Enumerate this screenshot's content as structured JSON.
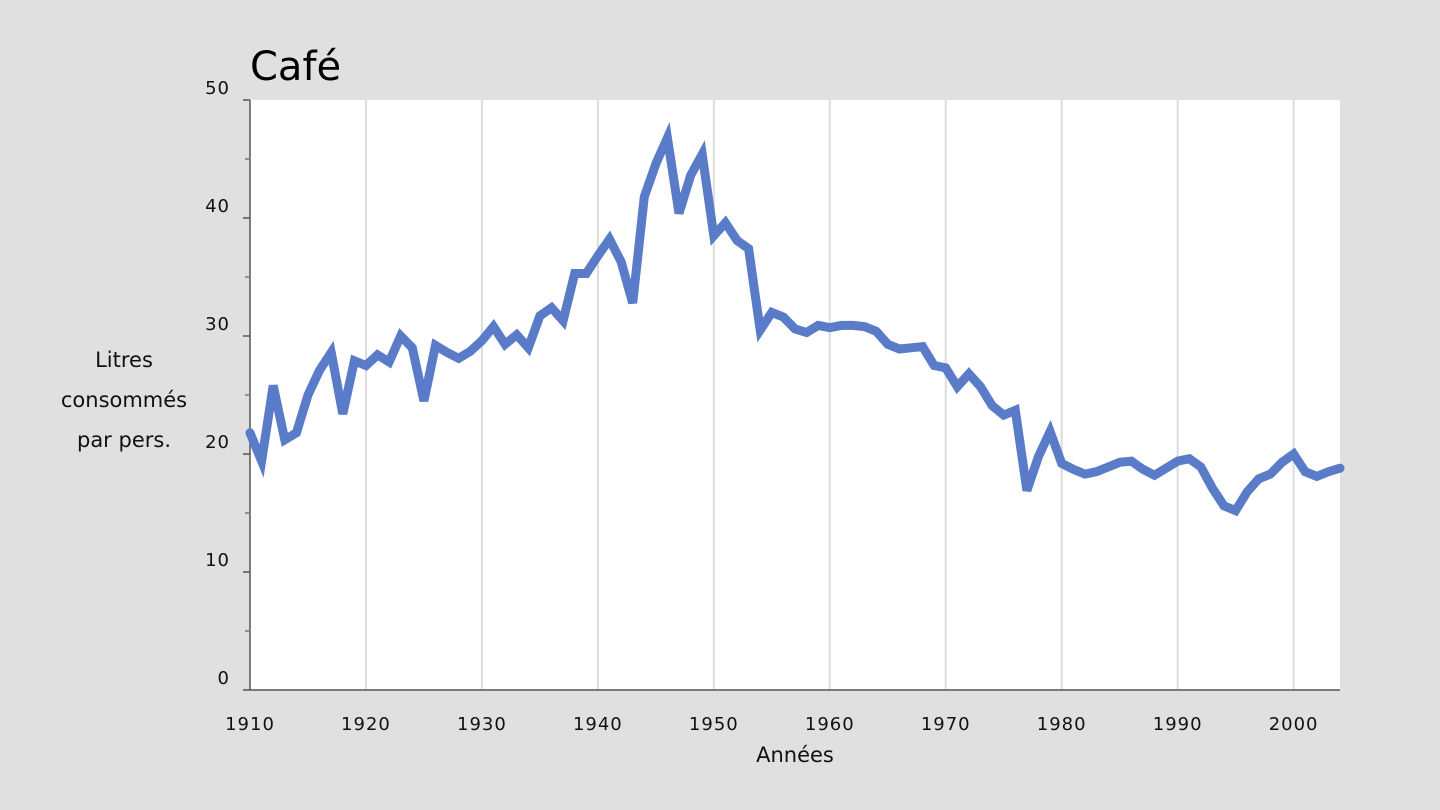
{
  "chart_data": {
    "type": "line",
    "title": "Café",
    "xlabel": "Années",
    "ylabel": [
      "Litres",
      "consommés",
      "par pers."
    ],
    "xlim": [
      1910,
      2004
    ],
    "ylim": [
      0,
      50
    ],
    "x_ticks": [
      1910,
      1920,
      1930,
      1940,
      1950,
      1960,
      1970,
      1980,
      1990,
      2000
    ],
    "y_ticks": [
      0,
      10,
      20,
      30,
      40,
      50
    ],
    "y_minor_ticks": [
      5,
      15,
      25,
      35,
      45
    ],
    "grid": {
      "x": true,
      "y": false
    },
    "line_color": "#5a7bc8",
    "series": [
      {
        "x": [
          1910,
          1911,
          1912,
          1913,
          1914,
          1915,
          1916,
          1917,
          1918,
          1919,
          1920,
          1921,
          1922,
          1923,
          1924,
          1925,
          1926,
          1927,
          1928,
          1929,
          1930,
          1931,
          1932,
          1933,
          1934,
          1935,
          1936,
          1937,
          1938,
          1939,
          1940,
          1941,
          1942,
          1943,
          1944,
          1945,
          1946,
          1947,
          1948,
          1949,
          1950,
          1951,
          1952,
          1953,
          1954,
          1955,
          1956,
          1957,
          1958,
          1959,
          1960,
          1961,
          1962,
          1963,
          1964,
          1965,
          1966,
          1967,
          1968,
          1969,
          1970,
          1971,
          1972,
          1973,
          1974,
          1975,
          1976,
          1977,
          1978,
          1979,
          1980,
          1981,
          1982,
          1983,
          1984,
          1985,
          1986,
          1987,
          1988,
          1989,
          1990,
          1991,
          1992,
          1993,
          1994,
          1995,
          1996,
          1997,
          1998,
          1999,
          2000,
          2001,
          2002,
          2003,
          2004
        ],
        "y": [
          21.8,
          19.4,
          25.8,
          21.2,
          21.8,
          25.0,
          27.1,
          28.6,
          23.4,
          27.9,
          27.5,
          28.4,
          27.8,
          30.0,
          29.0,
          24.5,
          29.2,
          28.6,
          28.1,
          28.7,
          29.6,
          30.8,
          29.3,
          30.1,
          29.0,
          31.7,
          32.4,
          31.3,
          35.3,
          35.3,
          36.8,
          38.2,
          36.3,
          32.8,
          41.8,
          44.6,
          46.8,
          40.4,
          43.6,
          45.4,
          38.5,
          39.6,
          38.1,
          37.4,
          30.5,
          32.0,
          31.6,
          30.6,
          30.3,
          30.9,
          30.7,
          30.9,
          30.9,
          30.8,
          30.4,
          29.3,
          28.9,
          29.0,
          29.1,
          27.5,
          27.3,
          25.7,
          26.8,
          25.7,
          24.1,
          23.3,
          23.7,
          16.9,
          19.8,
          21.9,
          19.2,
          18.7,
          18.3,
          18.5,
          18.9,
          19.3,
          19.4,
          18.7,
          18.2,
          18.8,
          19.4,
          19.6,
          18.9,
          17.1,
          15.6,
          15.2,
          16.8,
          17.9,
          18.3,
          19.3,
          20.0,
          18.5,
          18.1,
          18.5,
          18.8
        ]
      }
    ]
  }
}
